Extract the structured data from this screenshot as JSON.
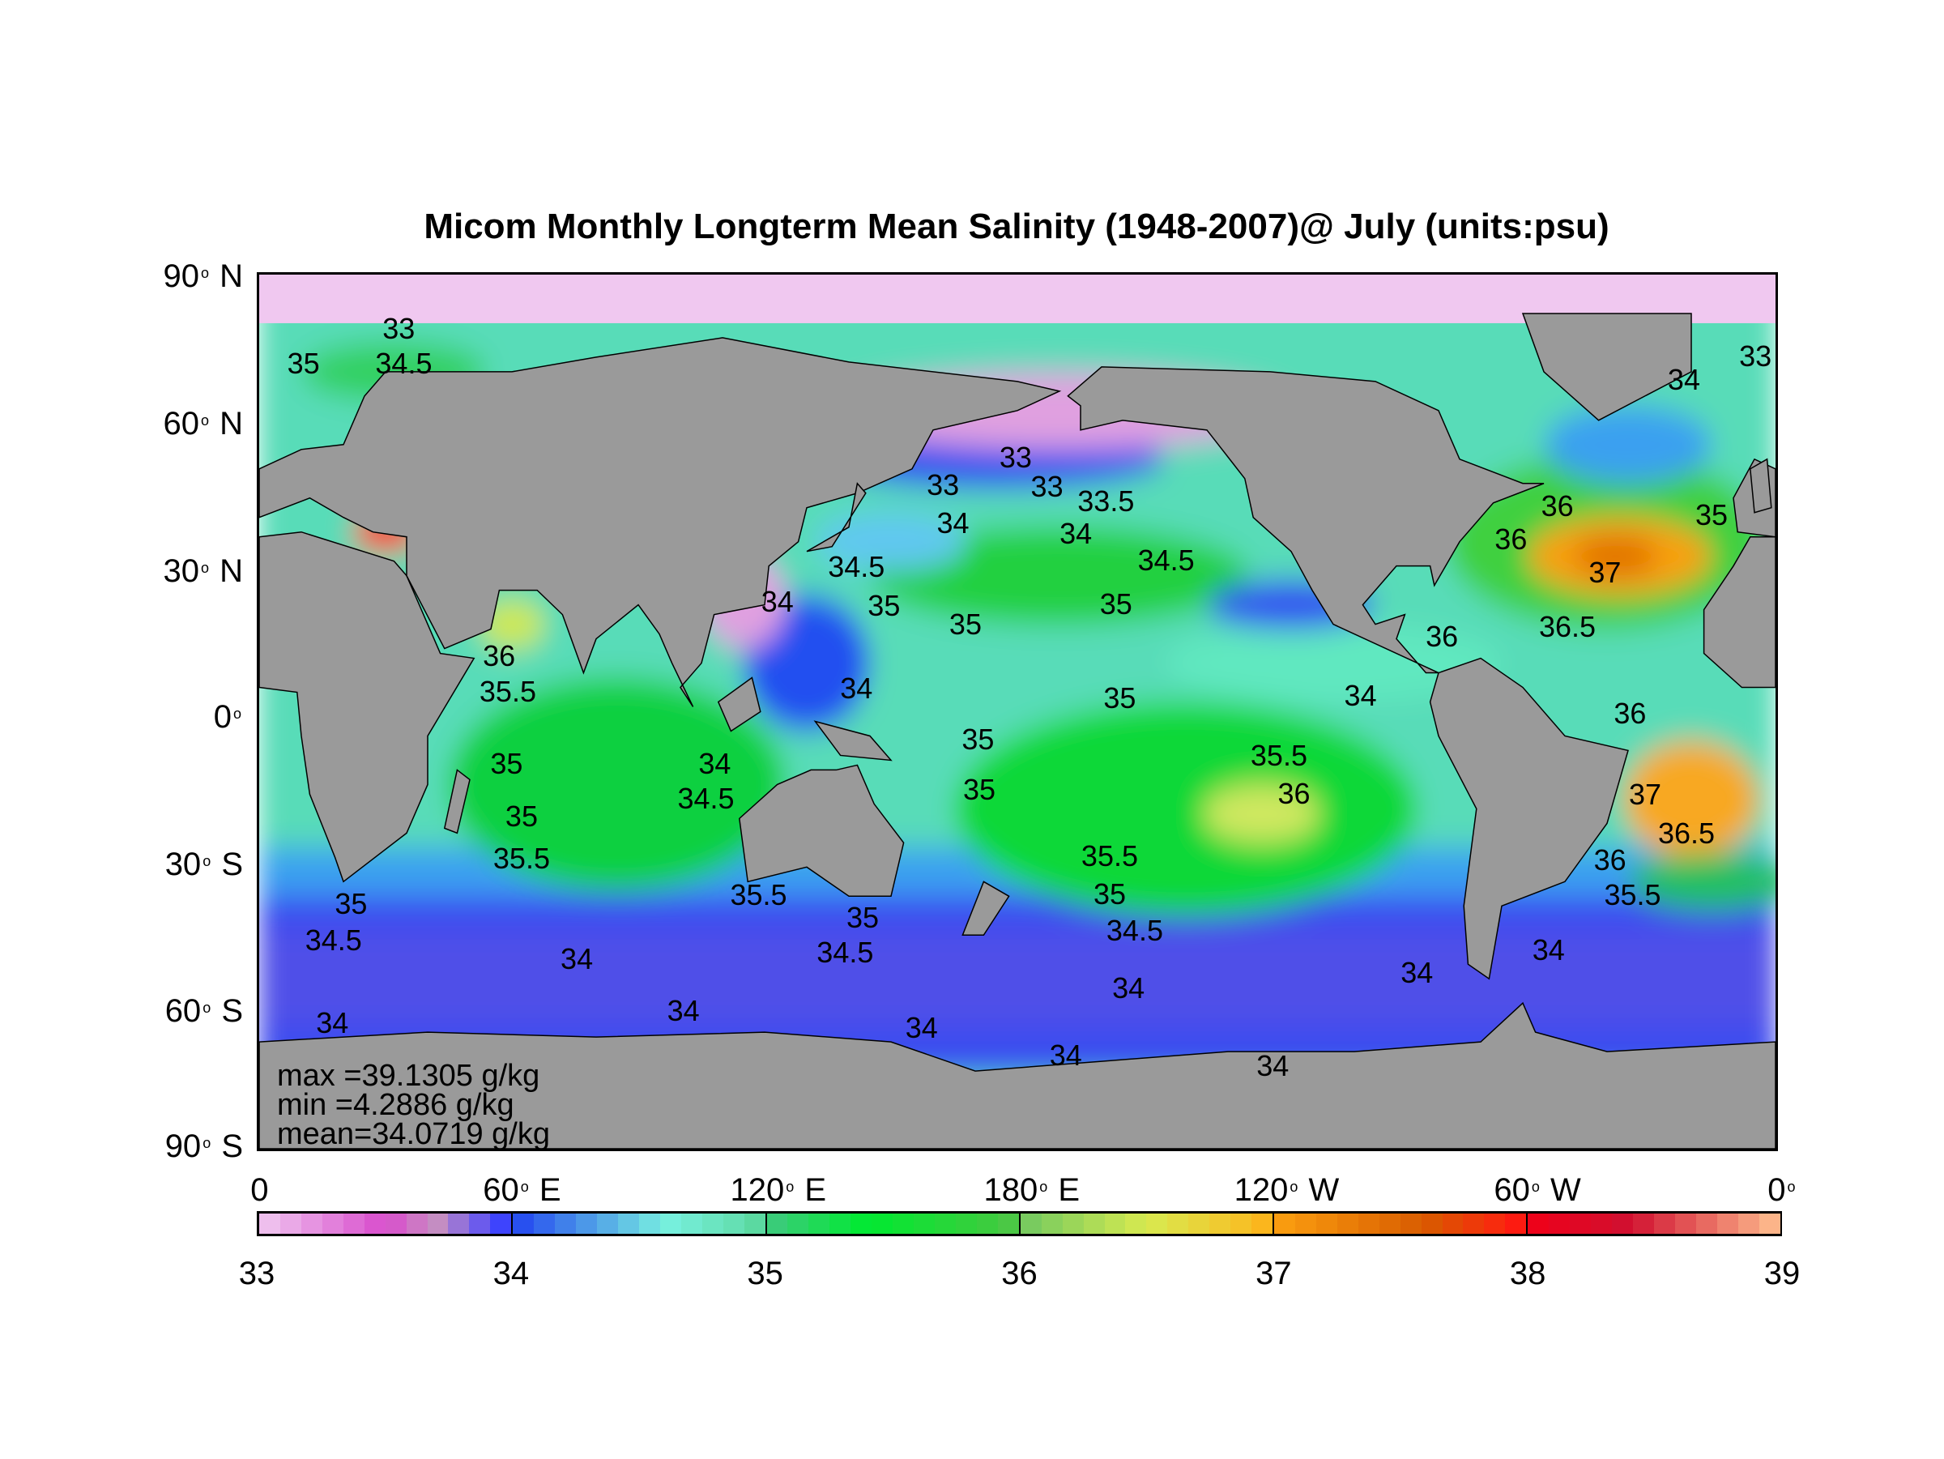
{
  "chart_data": {
    "type": "heatmap",
    "title": "Micom Monthly Longterm Mean Salinity (1948-2007)@ July (units:psu)",
    "xlabel": "",
    "ylabel": "",
    "x_ticks": [
      {
        "num": "0",
        "deg": false,
        "hemi": ""
      },
      {
        "num": "60",
        "deg": true,
        "hemi": "E"
      },
      {
        "num": "120",
        "deg": true,
        "hemi": "E"
      },
      {
        "num": "180",
        "deg": true,
        "hemi": "E"
      },
      {
        "num": "120",
        "deg": true,
        "hemi": "W"
      },
      {
        "num": "60",
        "deg": true,
        "hemi": "W"
      },
      {
        "num": "0",
        "deg": true,
        "hemi": ""
      }
    ],
    "y_ticks": [
      {
        "num": "90",
        "hemi": "N"
      },
      {
        "num": "60",
        "hemi": "N"
      },
      {
        "num": "30",
        "hemi": "N"
      },
      {
        "num": "0",
        "hemi": ""
      },
      {
        "num": "30",
        "hemi": "S"
      },
      {
        "num": "60",
        "hemi": "S"
      },
      {
        "num": "90",
        "hemi": "S"
      }
    ],
    "xlim": [
      0,
      360
    ],
    "ylim": [
      -90,
      90
    ],
    "stats": {
      "max": "max  =39.1305 g/kg",
      "min": "min   =4.2886 g/kg",
      "mean": "mean=34.0719 g/kg"
    },
    "colorbar": {
      "range": [
        33,
        39
      ],
      "tick_labels": [
        "33",
        "34",
        "35",
        "36",
        "37",
        "38",
        "39"
      ],
      "stops": [
        [
          33.0,
          "#f0c8f0"
        ],
        [
          33.5,
          "#d84ccc"
        ],
        [
          33.7,
          "#c890c0"
        ],
        [
          33.95,
          "#4444ff"
        ],
        [
          34.0,
          "#2244f0"
        ],
        [
          34.6,
          "#78f0e0"
        ],
        [
          34.95,
          "#60dca8"
        ],
        [
          35.0,
          "#40c880"
        ],
        [
          35.4,
          "#00ea30"
        ],
        [
          35.95,
          "#44c840"
        ],
        [
          36.0,
          "#70c860"
        ],
        [
          36.5,
          "#d8ea50"
        ],
        [
          36.95,
          "#fbba20"
        ],
        [
          37.0,
          "#fba010"
        ],
        [
          37.6,
          "#d85a00"
        ],
        [
          37.95,
          "#ff2010"
        ],
        [
          38.0,
          "#f00018"
        ],
        [
          38.4,
          "#d01030"
        ],
        [
          39.0,
          "#ffc090"
        ]
      ]
    },
    "contour_labels": [
      "33",
      "34.5",
      "35",
      "33",
      "33",
      "33",
      "34",
      "33.5",
      "34",
      "34.5",
      "34.5",
      "35",
      "35",
      "35",
      "37",
      "36",
      "36",
      "36",
      "36.5",
      "36",
      "37",
      "36.5",
      "36",
      "35.5",
      "34",
      "35",
      "35.5",
      "36",
      "35",
      "35",
      "34",
      "34",
      "34",
      "34.5",
      "35.5",
      "36",
      "35",
      "35",
      "35.5",
      "35.5",
      "35.5",
      "35",
      "34.5",
      "34.5",
      "35",
      "34",
      "34",
      "34",
      "34",
      "34",
      "34",
      "34",
      "34",
      "34",
      "34.5",
      "35",
      "35",
      "33",
      "34"
    ],
    "colors": {
      "land": "#9a9a9a",
      "arctic": "#f0c8f0"
    }
  }
}
